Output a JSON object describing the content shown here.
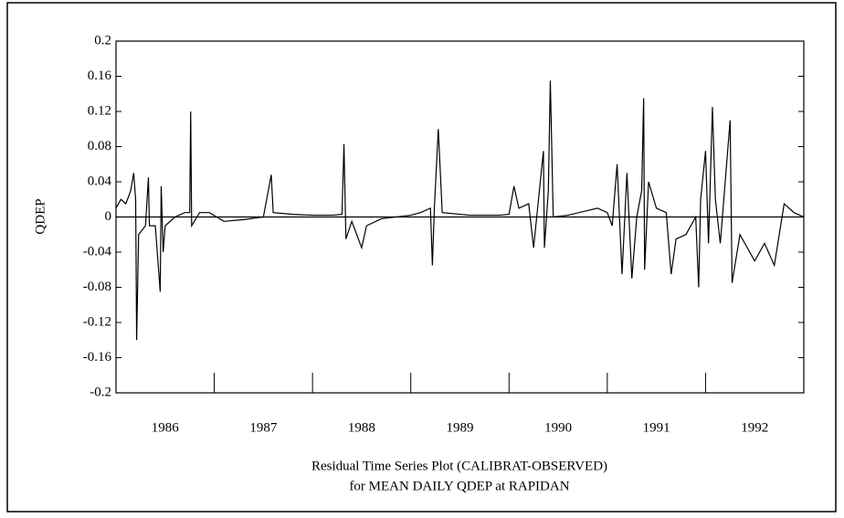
{
  "chart_data": {
    "type": "line",
    "ylabel": "QDEP",
    "xlabel": [
      "Residual Time Series Plot (CALIBRAT-OBSERVED)",
      "for MEAN DAILY QDEP at RAPIDAN"
    ],
    "year_labels": [
      "1986",
      "1987",
      "1988",
      "1989",
      "1990",
      "1991",
      "1992"
    ],
    "xlim": [
      1986,
      1993
    ],
    "xticks": [
      1987,
      1988,
      1989,
      1990,
      1991,
      1992
    ],
    "ylim": [
      -0.2,
      0.2
    ],
    "yticks": [
      0.2,
      0.16,
      0.12,
      0.08,
      0.04,
      0,
      -0.04,
      -0.08,
      -0.12,
      -0.16,
      -0.2
    ],
    "zero_line": true,
    "color": "#000000",
    "x": [
      1986.0,
      1986.05,
      1986.1,
      1986.15,
      1986.18,
      1986.2,
      1986.21,
      1986.23,
      1986.3,
      1986.33,
      1986.34,
      1986.4,
      1986.45,
      1986.46,
      1986.48,
      1986.5,
      1986.6,
      1986.7,
      1986.75,
      1986.76,
      1986.77,
      1986.85,
      1986.95,
      1987.1,
      1987.3,
      1987.5,
      1987.58,
      1987.6,
      1987.8,
      1988.0,
      1988.2,
      1988.3,
      1988.32,
      1988.34,
      1988.4,
      1988.5,
      1988.55,
      1988.7,
      1989.0,
      1989.1,
      1989.2,
      1989.22,
      1989.24,
      1989.28,
      1989.32,
      1989.6,
      1989.9,
      1990.0,
      1990.05,
      1990.1,
      1990.2,
      1990.25,
      1990.3,
      1990.35,
      1990.36,
      1990.4,
      1990.42,
      1990.45,
      1990.6,
      1990.9,
      1991.0,
      1991.05,
      1991.1,
      1991.15,
      1991.2,
      1991.25,
      1991.3,
      1991.35,
      1991.37,
      1991.38,
      1991.42,
      1991.5,
      1991.6,
      1991.65,
      1991.7,
      1991.8,
      1991.9,
      1991.93,
      1991.95,
      1992.0,
      1992.03,
      1992.07,
      1992.1,
      1992.15,
      1992.25,
      1992.27,
      1992.35,
      1992.5,
      1992.6,
      1992.7,
      1992.8,
      1992.9,
      1993.0
    ],
    "values": [
      0.01,
      0.02,
      0.015,
      0.03,
      0.05,
      0.02,
      -0.14,
      -0.02,
      -0.01,
      0.045,
      -0.01,
      -0.01,
      -0.085,
      0.035,
      -0.04,
      -0.01,
      0,
      0.005,
      0.005,
      0.12,
      -0.01,
      0.005,
      0.005,
      -0.005,
      -0.003,
      0,
      0.048,
      0.005,
      0.003,
      0.002,
      0.002,
      0.003,
      0.083,
      -0.025,
      -0.005,
      -0.035,
      -0.01,
      -0.002,
      0.002,
      0.005,
      0.01,
      -0.055,
      0.01,
      0.1,
      0.005,
      0.002,
      0.002,
      0.003,
      0.035,
      0.01,
      0.015,
      -0.035,
      0.02,
      0.075,
      -0.035,
      0.03,
      0.155,
      0,
      0.002,
      0.01,
      0.005,
      -0.01,
      0.06,
      -0.065,
      0.05,
      -0.07,
      0,
      0.03,
      0.135,
      -0.06,
      0.04,
      0.01,
      0.005,
      -0.065,
      -0.025,
      -0.02,
      0,
      -0.08,
      0.02,
      0.075,
      -0.03,
      0.125,
      0.02,
      -0.03,
      0.11,
      -0.075,
      -0.02,
      -0.05,
      -0.03,
      -0.055,
      0.015,
      0.005,
      0
    ]
  }
}
